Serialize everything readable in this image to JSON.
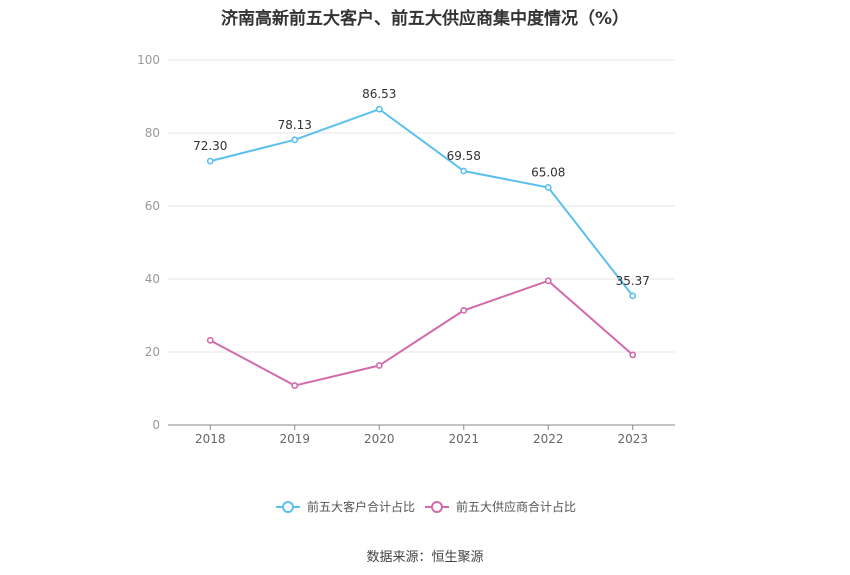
{
  "title": "济南高新前五大客户、前五大供应商集中度情况（%）",
  "source": "数据来源：恒生聚源",
  "chart_data": {
    "type": "line",
    "title": "济南高新前五大客户、前五大供应商集中度情况（%）",
    "x": [
      "2018",
      "2019",
      "2020",
      "2021",
      "2022",
      "2023"
    ],
    "ylim": [
      0,
      100
    ],
    "yticks": [
      0,
      20,
      40,
      60,
      80,
      100
    ],
    "grid": true,
    "legend_position": "bottom",
    "series": [
      {
        "name": "前五大客户合计占比",
        "color": "#5bc0f0",
        "values": [
          72.3,
          78.13,
          86.53,
          69.58,
          65.08,
          35.37
        ],
        "labels": [
          "72.30",
          "78.13",
          "86.53",
          "69.58",
          "65.08",
          "35.37"
        ]
      },
      {
        "name": "前五大供应商合计占比",
        "color": "#d36aad",
        "values": [
          23.2,
          10.8,
          16.3,
          31.4,
          39.5,
          19.2
        ],
        "labels": []
      }
    ]
  }
}
